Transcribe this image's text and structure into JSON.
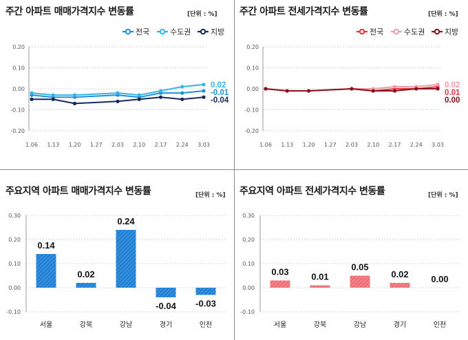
{
  "unit_label": "[단위 : %]",
  "chart_data": [
    {
      "type": "line",
      "title": "주간 아파트 매매가격지수 변동률",
      "x": [
        "1.06",
        "1.13",
        "1.20",
        "1.27",
        "2.03",
        "2.10",
        "2.17",
        "2.24",
        "3.03"
      ],
      "ylim": [
        -0.2,
        0.2
      ],
      "yticks": [
        "0.20",
        "0.10",
        "0.00",
        "-0.10",
        "-0.20"
      ],
      "legend_position": "top-right",
      "series": [
        {
          "name": "전국",
          "color": "#1f8fd6",
          "values": [
            -0.03,
            -0.04,
            -0.04,
            null,
            -0.03,
            -0.04,
            -0.02,
            -0.02,
            -0.01
          ],
          "end_label": "-0.01"
        },
        {
          "name": "수도권",
          "color": "#32b4e6",
          "values": [
            -0.02,
            -0.03,
            -0.03,
            null,
            -0.02,
            -0.03,
            -0.01,
            0.01,
            0.02
          ],
          "end_label": "0.02"
        },
        {
          "name": "지방",
          "color": "#14285e",
          "values": [
            -0.05,
            -0.05,
            -0.07,
            null,
            -0.06,
            -0.05,
            -0.04,
            -0.05,
            -0.04
          ],
          "end_label": "-0.04"
        }
      ]
    },
    {
      "type": "line",
      "title": "주간 아파트 전세가격지수 변동률",
      "x": [
        "1.06",
        "1.13",
        "1.20",
        "1.27",
        "2.03",
        "2.10",
        "2.17",
        "2.24",
        "3.03"
      ],
      "ylim": [
        -0.2,
        0.2
      ],
      "yticks": [
        "0.20",
        "0.10",
        "0.00",
        "-0.10",
        "-0.20"
      ],
      "legend_position": "top-right",
      "series": [
        {
          "name": "전국",
          "color": "#e8323c",
          "values": [
            0.0,
            -0.01,
            -0.01,
            null,
            0.0,
            -0.01,
            0.0,
            0.0,
            0.01
          ],
          "end_label": "0.01"
        },
        {
          "name": "수도권",
          "color": "#f29aa8",
          "values": [
            0.0,
            -0.01,
            -0.01,
            null,
            0.0,
            0.0,
            0.01,
            0.01,
            0.02
          ],
          "end_label": "0.02"
        },
        {
          "name": "지방",
          "color": "#8a0f18",
          "values": [
            0.0,
            -0.01,
            -0.01,
            null,
            0.0,
            -0.01,
            -0.01,
            0.0,
            0.0
          ],
          "end_label": "0.00"
        }
      ]
    },
    {
      "type": "bar",
      "title": "주요지역 아파트 매매가격지수 변동률",
      "categories": [
        "서울",
        "강북",
        "강남",
        "경기",
        "인천"
      ],
      "values": [
        0.14,
        0.02,
        0.24,
        -0.04,
        -0.03
      ],
      "value_labels": [
        "0.14",
        "0.02",
        "0.24",
        "-0.04",
        "-0.03"
      ],
      "ylim": [
        -0.1,
        0.3
      ],
      "yticks": [
        "0.30",
        "0.20",
        "0.10",
        "0.00",
        "-0.10"
      ],
      "color": "#1f80d6",
      "pattern": "hatched"
    },
    {
      "type": "bar",
      "title": "주요지역 아파트 전세가격지수 변동률",
      "categories": [
        "서울",
        "강북",
        "강남",
        "경기",
        "인천"
      ],
      "values": [
        0.03,
        0.01,
        0.05,
        0.02,
        0.0
      ],
      "value_labels": [
        "0.03",
        "0.01",
        "0.05",
        "0.02",
        "0.00"
      ],
      "ylim": [
        -0.1,
        0.3
      ],
      "yticks": [
        "0.30",
        "0.20",
        "0.10",
        "0.00",
        "-0.10"
      ],
      "color": "#f0707a",
      "pattern": "hatched"
    }
  ]
}
